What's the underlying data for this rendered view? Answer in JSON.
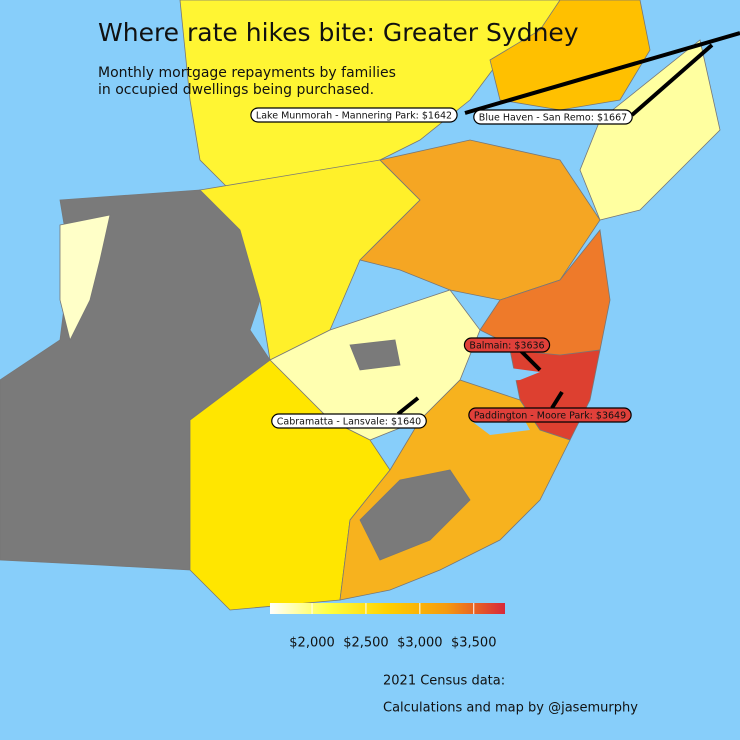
{
  "title": "Where rate hikes bite: Greater Sydney",
  "subtitle": [
    "Monthly mortgage repayments by families",
    "in occupied dwellings being purchased."
  ],
  "annotations": [
    {
      "label": "Lake Munmorah - Mannering Park: $1642",
      "color": "#ffffff"
    },
    {
      "label": "Blue Haven - San Remo: $1667",
      "color": "#ffffff"
    },
    {
      "label": "Balmain: $3636",
      "color": "#e0403a"
    },
    {
      "label": "Paddington - Moore Park: $3649",
      "color": "#e0403a"
    },
    {
      "label": "Cabramatta - Lansvale: $1640",
      "color": "#ffffff"
    }
  ],
  "legend": {
    "range": [
      1610,
      3790
    ],
    "colors": [
      "#ffffff",
      "#ffff40",
      "#ffd000",
      "#f59a10",
      "#d8283a"
    ],
    "ticks": [
      {
        "value": 2000,
        "label": "$2,000"
      },
      {
        "value": 2500,
        "label": "$2,500"
      },
      {
        "value": 3000,
        "label": "$3,000"
      },
      {
        "value": 3500,
        "label": "$3,500"
      }
    ]
  },
  "credits": [
    "2021 Census data:",
    "Calculations and map by @jasemurphy"
  ]
}
